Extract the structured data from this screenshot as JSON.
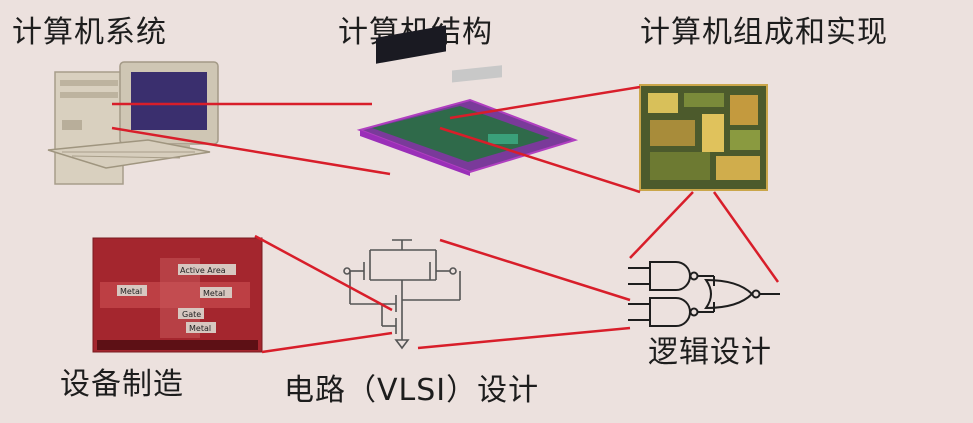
{
  "labels": {
    "computer_system": "计算机系统",
    "computer_architecture": "计算机结构",
    "computer_organization": "计算机组成和实现",
    "device_manufacturing": "设备制造",
    "circuit_design": "电路（VLSI）设计",
    "logic_design": "逻辑设计"
  },
  "wafer_labels": {
    "active_area": "Active Area",
    "metal_1": "Metal",
    "metal_2": "Metal",
    "gate": "Gate",
    "metal_3": "Metal"
  },
  "colors": {
    "background": "#ece1de",
    "connector": "#d81e2a",
    "wafer": "#a4262e"
  },
  "icons": [
    "desktop-computer-icon",
    "circuit-board-icon",
    "chip-die-icon",
    "wafer-micrograph-icon",
    "transistor-circuit-icon",
    "logic-gates-icon"
  ]
}
